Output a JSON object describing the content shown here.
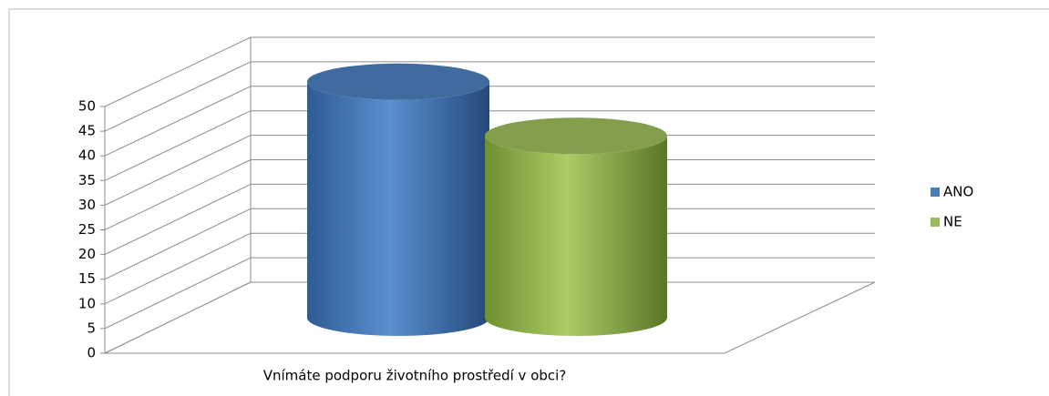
{
  "chart_data": {
    "type": "cylinder",
    "categories": [
      "Vnímáte podporu životního prostředí v obci?"
    ],
    "series": [
      {
        "name": "ANO",
        "color": "#4a7ebb",
        "values": [
          48
        ]
      },
      {
        "name": "NE",
        "color": "#9bbb59",
        "values": [
          37
        ]
      }
    ],
    "ylim": [
      0,
      50
    ],
    "yticks": [
      0,
      5,
      10,
      15,
      20,
      25,
      30,
      35,
      40,
      45,
      50
    ],
    "grid": true,
    "legend": "right"
  }
}
